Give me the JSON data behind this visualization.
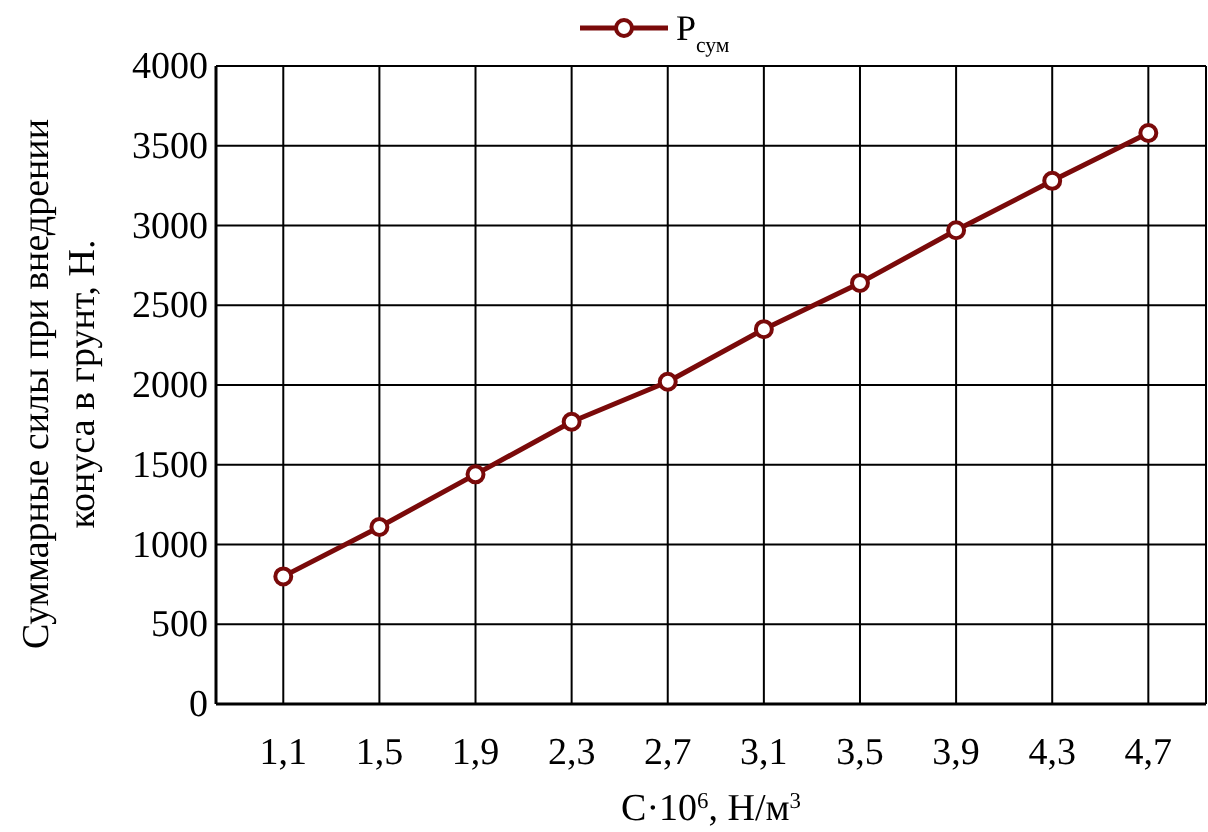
{
  "chart_data": {
    "type": "line",
    "xlabel": "C·10$^{6}$, Н/м$^{3}$",
    "ylabel": "Суммарные силы при внедрении конуса в грунт, Н.",
    "categories": [
      "1,1",
      "1,5",
      "1,9",
      "2,3",
      "2,7",
      "3,1",
      "3,5",
      "3,9",
      "4,3",
      "4,7"
    ],
    "series": [
      {
        "name": "P$_{сум}$",
        "color": "#7a0a0a",
        "values": [
          800,
          1110,
          1440,
          1770,
          2020,
          2350,
          2640,
          2970,
          3280,
          3580
        ]
      }
    ],
    "ylim": [
      0,
      4000
    ],
    "yticks": [
      0,
      500,
      1000,
      1500,
      2000,
      2500,
      3000,
      3500,
      4000
    ],
    "grid": true,
    "legend": "top",
    "marker": "circle",
    "line_style": "solid"
  }
}
